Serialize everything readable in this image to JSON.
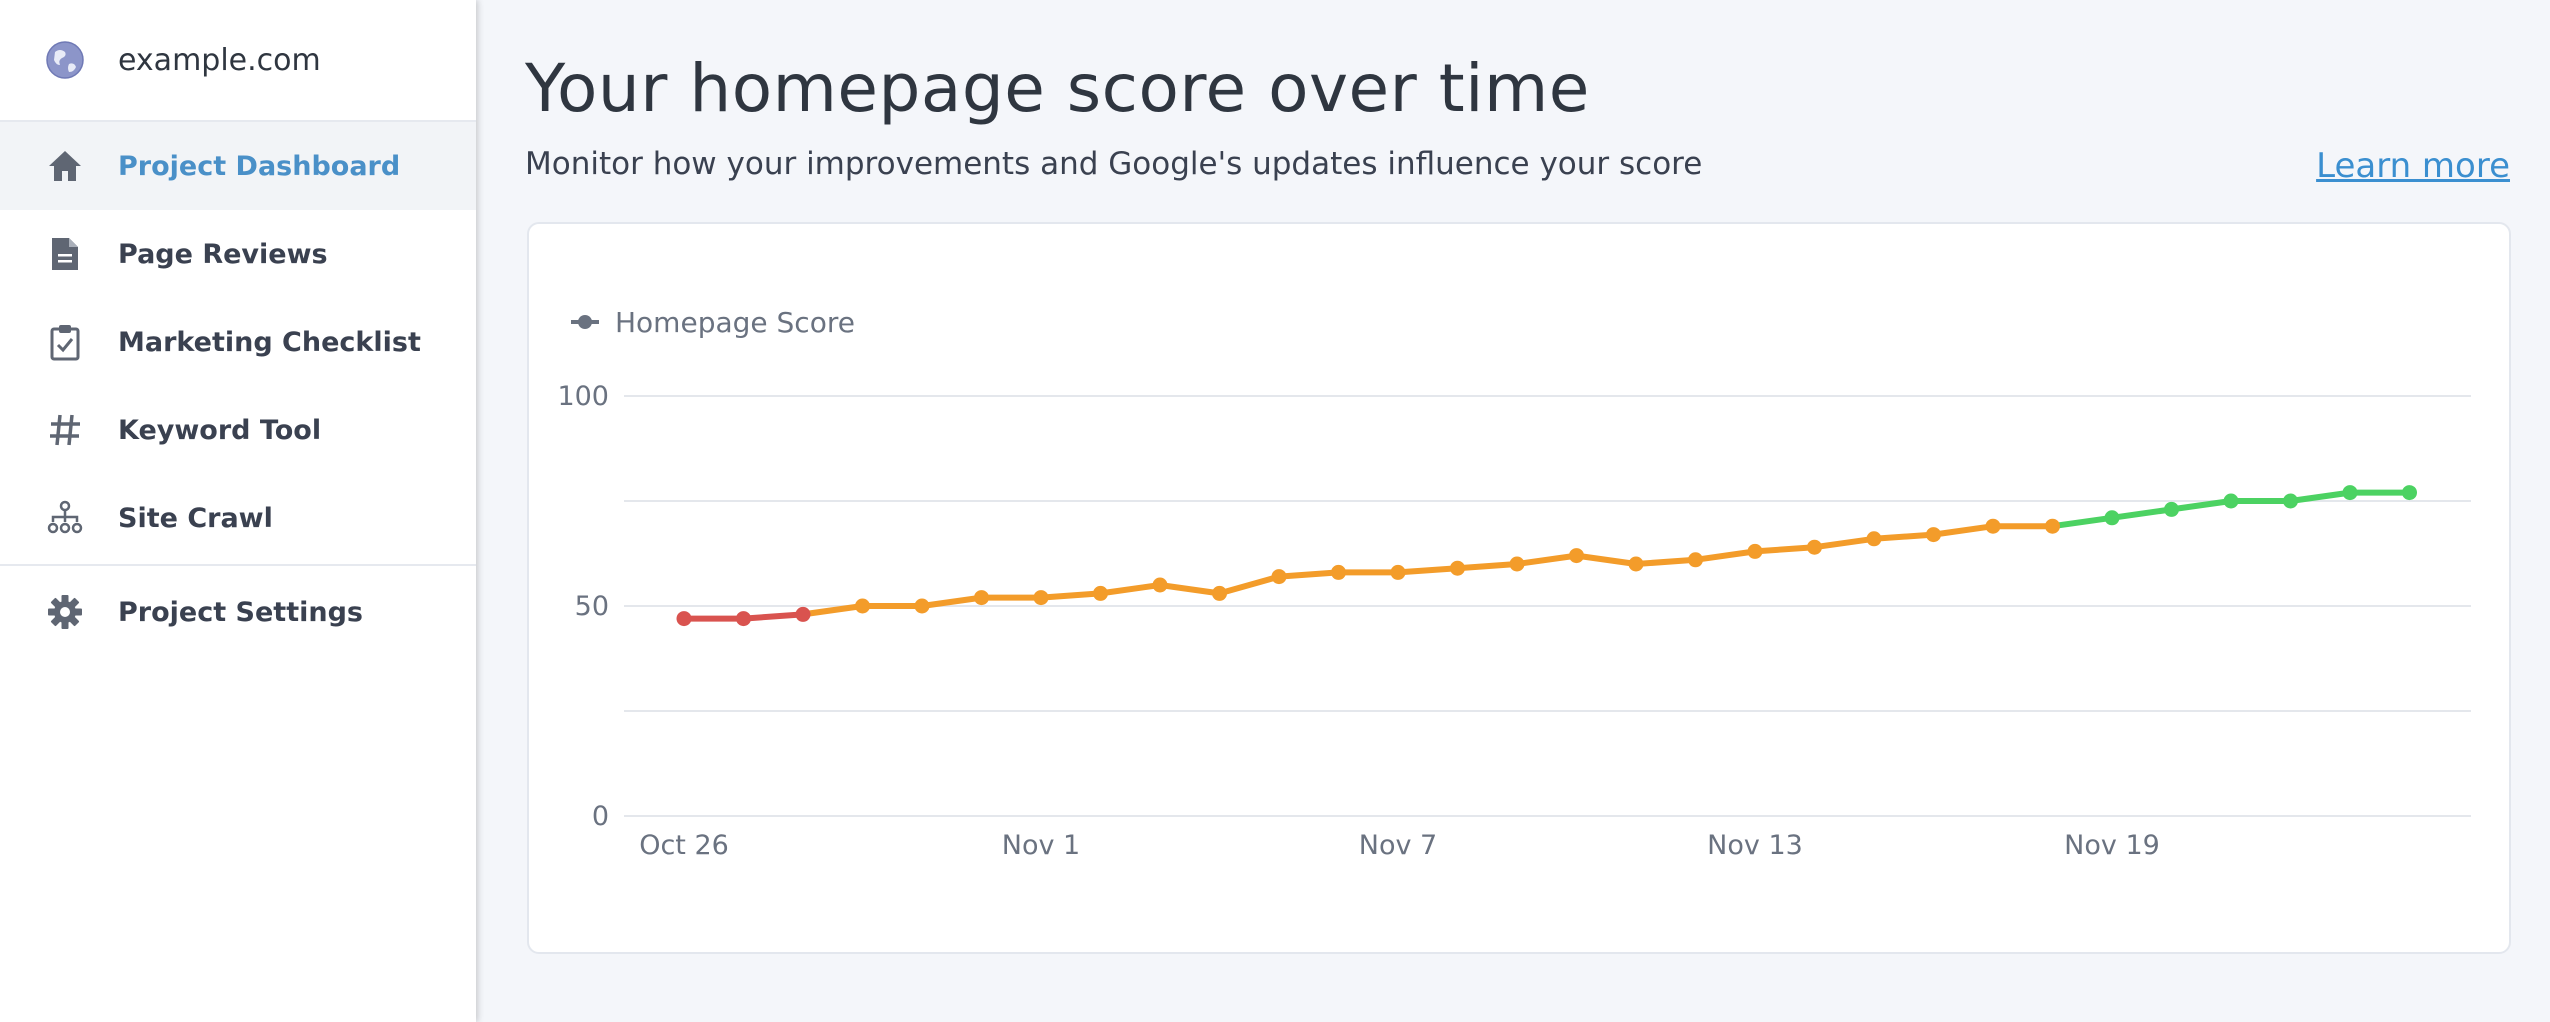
{
  "sidebar": {
    "site_name": "example.com",
    "items": [
      {
        "label": "Project Dashboard",
        "icon": "home-icon",
        "active": true
      },
      {
        "label": "Page Reviews",
        "icon": "document-icon",
        "active": false
      },
      {
        "label": "Marketing Checklist",
        "icon": "clipboard-check-icon",
        "active": false
      },
      {
        "label": "Keyword Tool",
        "icon": "hashtag-icon",
        "active": false
      },
      {
        "label": "Site Crawl",
        "icon": "sitemap-icon",
        "active": false
      },
      {
        "label": "Project Settings",
        "icon": "gear-icon",
        "active": false
      }
    ]
  },
  "main": {
    "title": "Your homepage score over time",
    "subtitle": "Monitor how your improvements and Google's updates influence your score",
    "learn_more": "Learn more"
  },
  "colors": {
    "accent": "#4a90c8",
    "link": "#3b8fd0",
    "score_low": "#d9534f",
    "score_mid": "#f39c2a",
    "score_high": "#4cd262"
  },
  "chart_data": {
    "type": "line",
    "series": [
      {
        "name": "Homepage Score",
        "x": [
          "Oct 26",
          "Oct 27",
          "Oct 28",
          "Oct 29",
          "Oct 30",
          "Oct 31",
          "Nov 1",
          "Nov 2",
          "Nov 3",
          "Nov 4",
          "Nov 5",
          "Nov 6",
          "Nov 7",
          "Nov 8",
          "Nov 9",
          "Nov 10",
          "Nov 11",
          "Nov 12",
          "Nov 13",
          "Nov 14",
          "Nov 15",
          "Nov 16",
          "Nov 17",
          "Nov 18",
          "Nov 19",
          "Nov 20",
          "Nov 21",
          "Nov 22",
          "Nov 23",
          "Nov 24",
          "Nov 25"
        ],
        "values": [
          47,
          47,
          48,
          50,
          50,
          52,
          52,
          53,
          55,
          53,
          57,
          58,
          58,
          59,
          60,
          62,
          60,
          61,
          63,
          64,
          66,
          67,
          69,
          69,
          71,
          73,
          75,
          75,
          77,
          77,
          null
        ]
      }
    ],
    "x_tick_labels": [
      "Oct 26",
      "Nov 1",
      "Nov 7",
      "Nov 13",
      "Nov 19"
    ],
    "y_tick_labels": [
      "100",
      "50",
      "0"
    ],
    "ylim": [
      0,
      100
    ],
    "grid": true,
    "legend_position": "top-left",
    "color_thresholds": {
      "low_below": 50,
      "high_from": 70
    }
  }
}
